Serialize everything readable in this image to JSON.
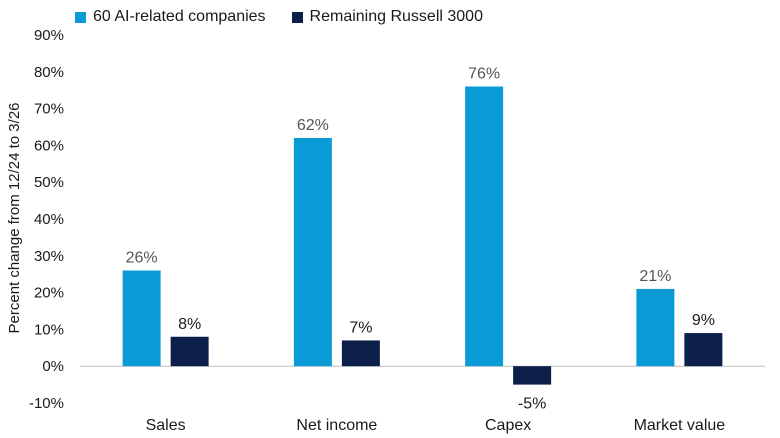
{
  "chart_data": {
    "type": "bar",
    "categories": [
      "Sales",
      "Net income",
      "Capex",
      "Market value"
    ],
    "series": [
      {
        "name": "60 AI-related companies",
        "color": "#0a9ad6",
        "values": [
          26,
          62,
          76,
          21
        ],
        "labels": [
          "26%",
          "62%",
          "76%",
          "21%"
        ]
      },
      {
        "name": "Remaining Russell 3000",
        "color": "#0c1f4b",
        "values": [
          8,
          7,
          -5,
          9
        ],
        "labels": [
          "8%",
          "7%",
          "-5%",
          "9%"
        ]
      }
    ],
    "ylabel": "Percent change from 12/24 to 3/26",
    "ylim": [
      -10,
      90
    ],
    "yticks": [
      -10,
      0,
      10,
      20,
      30,
      40,
      50,
      60,
      70,
      80,
      90
    ],
    "ytick_labels": [
      "-10%",
      "0%",
      "10%",
      "20%",
      "30%",
      "40%",
      "50%",
      "60%",
      "70%",
      "80%",
      "90%"
    ],
    "grid": false,
    "legend_position": "top-left"
  }
}
